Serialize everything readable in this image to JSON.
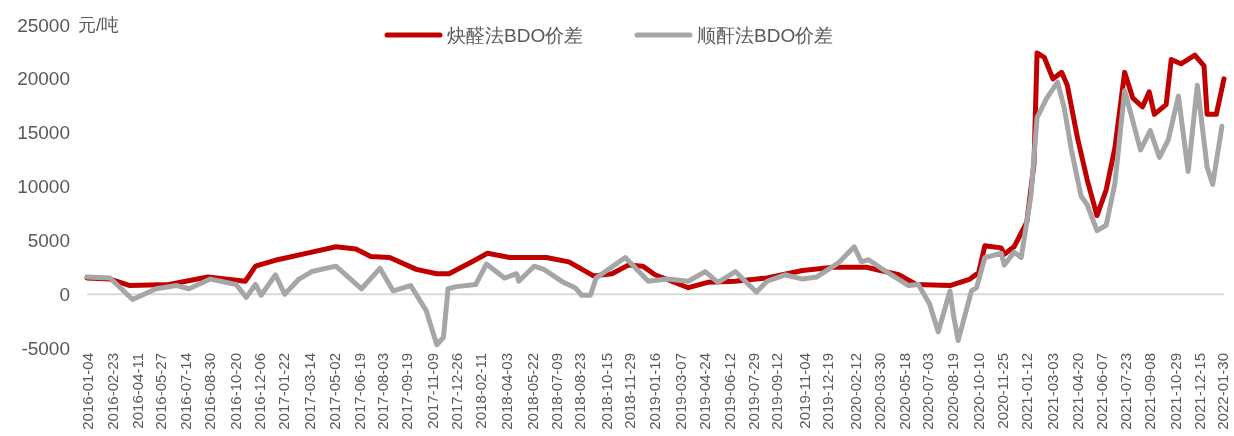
{
  "chart_data": {
    "type": "line",
    "ylabel": "元/吨",
    "legend": "top",
    "line_style": "solid",
    "marker": "none",
    "grid": false,
    "ref_lines": [
      {
        "axis": "y",
        "value": 0,
        "color": "#d9d9d9"
      }
    ],
    "xlim": [
      "2016-01-04",
      "2022-02-01"
    ],
    "ylim": [
      -5000,
      25000
    ],
    "yticks": [
      -5000,
      0,
      5000,
      10000,
      15000,
      20000,
      25000
    ],
    "xticks": [
      "2016-01-04",
      "2016-02-23",
      "2016-04-11",
      "2016-05-27",
      "2016-07-14",
      "2016-08-30",
      "2016-10-20",
      "2016-12-06",
      "2017-01-22",
      "2017-03-14",
      "2017-05-02",
      "2017-06-19",
      "2017-08-03",
      "2017-09-19",
      "2017-11-09",
      "2017-12-26",
      "2018-02-11",
      "2018-04-03",
      "2018-05-22",
      "2018-07-09",
      "2018-08-23",
      "2018-10-15",
      "2018-11-29",
      "2019-01-16",
      "2019-03-07",
      "2019-04-24",
      "2019-06-12",
      "2019-07-29",
      "2019-09-12",
      "2019-11-04",
      "2019-12-19",
      "2020-02-12",
      "2020-03-30",
      "2020-05-18",
      "2020-07-03",
      "2020-08-19",
      "2020-10-10",
      "2020-11-25",
      "2021-01-12",
      "2021-03-03",
      "2021-04-20",
      "2021-06-07",
      "2021-07-23",
      "2021-09-08",
      "2021-10-29",
      "2021-12-15",
      "2022-01-30"
    ],
    "series": [
      {
        "name": "炔醛法BDO价差",
        "color": "#c00000",
        "x": [
          "2016-01-04",
          "2016-02-18",
          "2016-03-28",
          "2016-06-12",
          "2016-08-27",
          "2016-11-08",
          "2016-11-28",
          "2017-01-10",
          "2017-03-18",
          "2017-05-04",
          "2017-06-12",
          "2017-07-11",
          "2017-08-17",
          "2017-10-08",
          "2017-11-17",
          "2017-12-11",
          "2018-02-01",
          "2018-02-24",
          "2018-04-09",
          "2018-06-19",
          "2018-08-02",
          "2018-09-19",
          "2018-10-25",
          "2018-11-26",
          "2018-12-24",
          "2019-01-17",
          "2019-03-23",
          "2019-04-30",
          "2019-06-23",
          "2019-08-24",
          "2019-11-01",
          "2019-12-31",
          "2020-03-05",
          "2020-05-07",
          "2020-06-10",
          "2020-08-15",
          "2020-09-23",
          "2020-10-10",
          "2020-10-22",
          "2020-11-23",
          "2020-11-29",
          "2020-12-18",
          "2021-01-12",
          "2021-01-26",
          "2021-02-01",
          "2021-02-15",
          "2021-03-04",
          "2021-03-21",
          "2021-04-01",
          "2021-04-21",
          "2021-05-10",
          "2021-05-29",
          "2021-06-16",
          "2021-07-03",
          "2021-07-22",
          "2021-08-07",
          "2021-08-26",
          "2021-09-08",
          "2021-09-18",
          "2021-10-11",
          "2021-10-21",
          "2021-11-09",
          "2021-12-06",
          "2021-12-24",
          "2021-12-30",
          "2022-01-17",
          "2022-02-01"
        ],
        "values": [
          1500,
          1400,
          800,
          900,
          1600,
          1200,
          2600,
          3200,
          3900,
          4400,
          4200,
          3500,
          3400,
          2300,
          1900,
          1900,
          3200,
          3800,
          3400,
          3400,
          3000,
          1700,
          1900,
          2700,
          2600,
          1800,
          600,
          1100,
          1200,
          1500,
          2200,
          2500,
          2500,
          1800,
          900,
          800,
          1400,
          2000,
          4500,
          4300,
          3700,
          4400,
          6700,
          12100,
          22400,
          22000,
          20000,
          20600,
          19400,
          14500,
          10600,
          7300,
          9700,
          13600,
          20600,
          18200,
          17400,
          18800,
          16700,
          17600,
          21800,
          21400,
          22200,
          21200,
          16700,
          16700,
          20000
        ]
      },
      {
        "name": "顺酐法BDO价差",
        "color": "#a6a6a6",
        "x": [
          "2016-01-04",
          "2016-02-18",
          "2016-04-02",
          "2016-05-18",
          "2016-06-27",
          "2016-07-21",
          "2016-09-01",
          "2016-10-21",
          "2016-11-10",
          "2016-11-28",
          "2016-12-09",
          "2017-01-06",
          "2017-01-24",
          "2017-02-21",
          "2017-03-18",
          "2017-05-04",
          "2017-06-23",
          "2017-07-29",
          "2017-08-24",
          "2017-09-27",
          "2017-10-27",
          "2017-11-17",
          "2017-11-30",
          "2017-12-09",
          "2017-12-25",
          "2018-02-01",
          "2018-02-22",
          "2018-03-29",
          "2018-04-22",
          "2018-04-26",
          "2018-05-26",
          "2018-06-14",
          "2018-07-22",
          "2018-08-14",
          "2018-08-27",
          "2018-09-13",
          "2018-09-24",
          "2018-11-20",
          "2019-01-04",
          "2019-02-10",
          "2019-03-23",
          "2019-04-25",
          "2019-05-20",
          "2019-06-23",
          "2019-07-12",
          "2019-08-03",
          "2019-08-24",
          "2019-09-28",
          "2019-11-01",
          "2019-11-29",
          "2020-01-10",
          "2020-02-10",
          "2020-02-24",
          "2020-03-09",
          "2020-04-06",
          "2020-05-26",
          "2020-06-14",
          "2020-07-06",
          "2020-07-23",
          "2020-08-15",
          "2020-08-22",
          "2020-08-31",
          "2020-09-26",
          "2020-10-06",
          "2020-10-22",
          "2020-11-23",
          "2020-11-29",
          "2020-12-18",
          "2021-01-01",
          "2021-01-20",
          "2021-02-01",
          "2021-02-20",
          "2021-03-13",
          "2021-03-26",
          "2021-04-09",
          "2021-04-28",
          "2021-05-10",
          "2021-05-29",
          "2021-06-16",
          "2021-07-03",
          "2021-07-22",
          "2021-08-22",
          "2021-09-10",
          "2021-09-28",
          "2021-10-15",
          "2021-11-04",
          "2021-11-23",
          "2021-12-11",
          "2021-12-30",
          "2022-01-10",
          "2022-01-28"
        ],
        "values": [
          1600,
          1500,
          -500,
          500,
          800,
          500,
          1400,
          900,
          -300,
          900,
          -100,
          1800,
          0,
          1400,
          2100,
          2600,
          500,
          2400,
          300,
          800,
          -1500,
          -4700,
          -4000,
          500,
          700,
          900,
          2800,
          1500,
          1900,
          1200,
          2600,
          2300,
          1100,
          600,
          -100,
          -100,
          1500,
          3400,
          1200,
          1400,
          1200,
          2100,
          1100,
          2100,
          1200,
          200,
          1200,
          1800,
          1400,
          1600,
          2900,
          4400,
          3000,
          3200,
          2300,
          800,
          900,
          -900,
          -3500,
          300,
          -2000,
          -4300,
          300,
          600,
          3400,
          3800,
          2700,
          3900,
          3400,
          9100,
          16400,
          18200,
          19700,
          17300,
          13400,
          9100,
          8300,
          5900,
          6400,
          10300,
          18900,
          13400,
          15200,
          12700,
          14300,
          18400,
          11400,
          19400,
          11800,
          10200,
          15600
        ]
      }
    ]
  }
}
